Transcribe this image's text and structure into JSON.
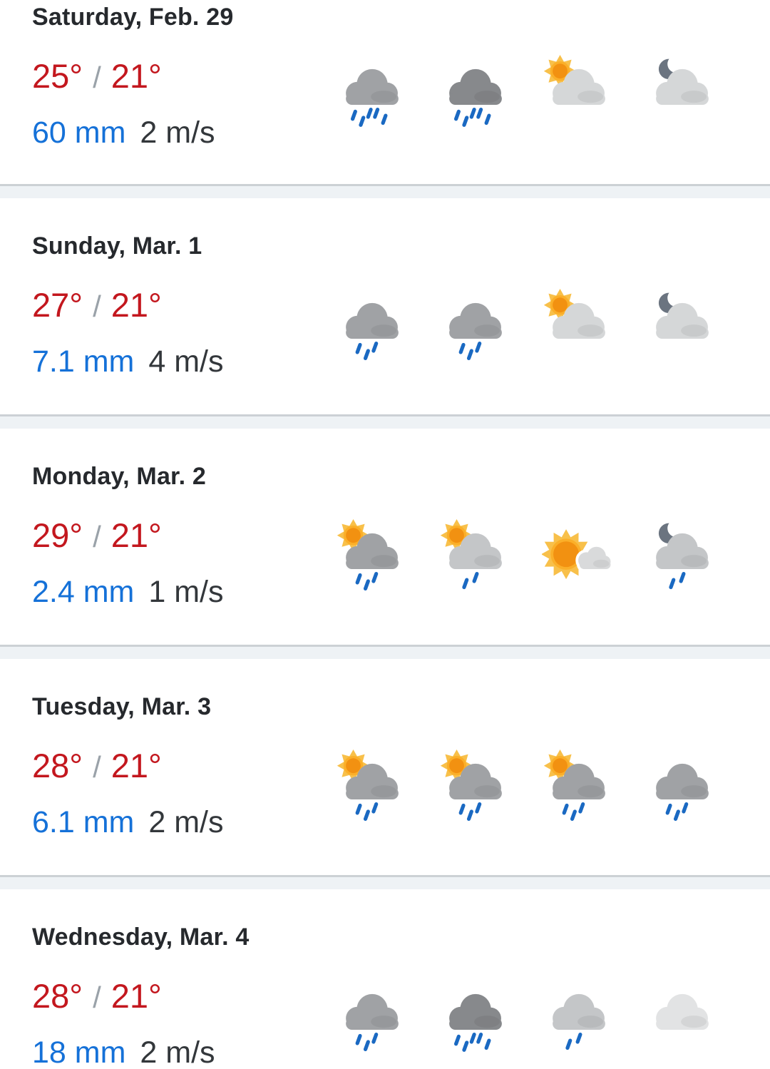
{
  "theme": {
    "temp_color": "#c3171e",
    "slash_color": "#9aa2a9",
    "precip_color": "#1571d8",
    "wind_color": "#33373b",
    "title_color": "#26292d",
    "divider_line": "#ccd1d5",
    "divider_band": "#eef2f5",
    "drop_color": "#1a69c2",
    "moon_color": "#6b7480",
    "sun_ray": "#f8c04a",
    "sun_core": "#fbaf29",
    "sun_inner": "#f29111",
    "cloud_dark": "#87898c",
    "cloud_medium": "#a0a2a5",
    "cloud_mlight": "#c4c6c8",
    "cloud_light": "#d5d7d8",
    "cloud_lighter": "#e2e3e4",
    "cloud_small": "#d9dadb"
  },
  "forecast": {
    "days": [
      {
        "date": "Saturday, Feb. 29",
        "high": "25°",
        "separator": "/",
        "low": "21°",
        "precipitation": "60 mm",
        "wind": "2 m/s",
        "icons": [
          {
            "name": "heavy-rain-icon",
            "cloud": "medium",
            "drops": 5
          },
          {
            "name": "heavy-rain-dark-icon",
            "cloud": "dark",
            "drops": 5
          },
          {
            "name": "partly-cloudy-day-icon",
            "cloud": "light",
            "sun": "small",
            "drops": 0
          },
          {
            "name": "partly-cloudy-night-icon",
            "cloud": "light",
            "moon": true,
            "drops": 0
          }
        ]
      },
      {
        "date": "Sunday, Mar. 1",
        "high": "27°",
        "separator": "/",
        "low": "21°",
        "precipitation": "7.1 mm",
        "wind": "4 m/s",
        "icons": [
          {
            "name": "rain-icon",
            "cloud": "medium",
            "drops": 3
          },
          {
            "name": "rain-icon",
            "cloud": "medium",
            "drops": 3
          },
          {
            "name": "partly-cloudy-day-icon",
            "cloud": "light",
            "sun": "small",
            "drops": 0
          },
          {
            "name": "partly-cloudy-night-icon",
            "cloud": "light",
            "moon": true,
            "drops": 0
          }
        ]
      },
      {
        "date": "Monday, Mar. 2",
        "high": "29°",
        "separator": "/",
        "low": "21°",
        "precipitation": "2.4 mm",
        "wind": "1 m/s",
        "icons": [
          {
            "name": "sun-rain-icon",
            "cloud": "medium",
            "sun": "small",
            "drops": 3
          },
          {
            "name": "sun-light-rain-icon",
            "cloud": "mlight",
            "sun": "small",
            "drops": 2
          },
          {
            "name": "mostly-sunny-icon",
            "cloud": "small",
            "sun": "big",
            "drops": 0
          },
          {
            "name": "night-rain-icon",
            "cloud": "mlight",
            "moon": true,
            "drops": 2
          }
        ]
      },
      {
        "date": "Tuesday, Mar. 3",
        "high": "28°",
        "separator": "/",
        "low": "21°",
        "precipitation": "6.1 mm",
        "wind": "2 m/s",
        "icons": [
          {
            "name": "sun-rain-icon",
            "cloud": "medium",
            "sun": "small",
            "drops": 3
          },
          {
            "name": "sun-rain-icon",
            "cloud": "medium",
            "sun": "small",
            "drops": 3
          },
          {
            "name": "sun-rain-icon",
            "cloud": "medium",
            "sun": "small",
            "drops": 3
          },
          {
            "name": "rain-icon",
            "cloud": "medium",
            "drops": 3
          }
        ]
      },
      {
        "date": "Wednesday, Mar. 4",
        "high": "28°",
        "separator": "/",
        "low": "21°",
        "precipitation": "18 mm",
        "wind": "2 m/s",
        "icons": [
          {
            "name": "rain-icon",
            "cloud": "medium",
            "drops": 3
          },
          {
            "name": "heavy-rain-dark-icon",
            "cloud": "dark",
            "drops": 5
          },
          {
            "name": "light-rain-icon",
            "cloud": "mlight",
            "drops": 2
          },
          {
            "name": "cloudy-icon",
            "cloud": "lighter",
            "drops": 0
          }
        ]
      }
    ]
  }
}
